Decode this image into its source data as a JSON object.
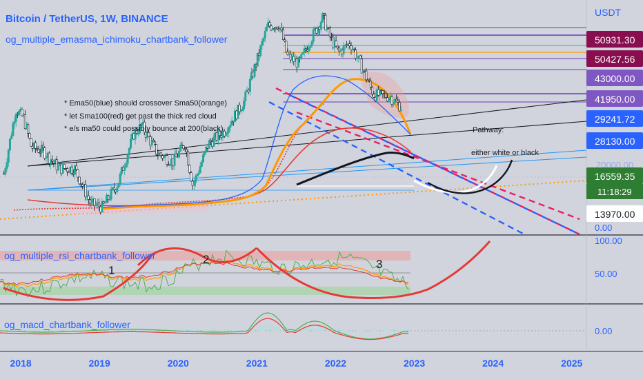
{
  "header": {
    "symbol": "Bitcoin / TetherUS, 1W, BINANCE",
    "main_indicator": "og_multiple_emasma_ichimoku_chartbank_follower"
  },
  "price_scale": {
    "currency": "USDT",
    "labels": [
      {
        "text": "50931.30",
        "color": "#880e4f",
        "value": 50931.3
      },
      {
        "text": "50427.56",
        "color": "#880e4f",
        "value": 50427.56
      },
      {
        "text": "43000.00",
        "color": "#7e57c2",
        "value": 43000.0
      },
      {
        "text": "41950.00",
        "color": "#7e57c2",
        "value": 41950.0
      },
      {
        "text": "29241.72",
        "color": "#2962ff",
        "value": 29241.72
      },
      {
        "text": "28130.00",
        "color": "#2962ff",
        "value": 28130.0
      },
      {
        "text": "16559.35",
        "color": "#2e7d32",
        "value": 16559.35
      },
      {
        "text": "13970.00",
        "color": "#ffffff",
        "value": 13970.0
      }
    ],
    "countdown": "11:18:29",
    "faint_tick": "20000.00",
    "zero_label": "0.00"
  },
  "annotations": {
    "notes": [
      "* Ema50(blue) should crossover Sma50(orange)",
      "* let Sma100(red) get past the thick red cloud",
      "* e/s ma50 could possibly bounce at 200(black)"
    ],
    "pathway": "Pathway:",
    "pathway_options": "either white or black"
  },
  "rsi_panel": {
    "title": "og_multiple_rsi_chartbank_follower",
    "scale": [
      "100.00",
      "50.00"
    ],
    "cycle_labels": [
      "1",
      "2",
      "3"
    ]
  },
  "macd_panel": {
    "title": "og_macd_chartbank_follower",
    "scale": [
      "0.00"
    ]
  },
  "time_axis": {
    "labels": [
      "2018",
      "2019",
      "2020",
      "2021",
      "2022",
      "2023",
      "2024",
      "2025"
    ]
  },
  "colors": {
    "background": "#d1d4dc",
    "bull": "#26a69a",
    "candle_dark": "#000000",
    "ema50": "#2962ff",
    "sma50": "#ff9800",
    "sma100": "#e53935",
    "ma200": "#000000",
    "axis_text": "#2962ff"
  },
  "chart_data": {
    "type": "candlestick",
    "interval": "1W",
    "x_range": [
      2017.75,
      2025.2
    ],
    "price_range": [
      0,
      70000
    ],
    "close_series": [
      {
        "t": 2017.8,
        "c": 6000
      },
      {
        "t": 2017.95,
        "c": 16000
      },
      {
        "t": 2018.05,
        "c": 14000
      },
      {
        "t": 2018.15,
        "c": 9000
      },
      {
        "t": 2018.3,
        "c": 8500
      },
      {
        "t": 2018.5,
        "c": 6500
      },
      {
        "t": 2018.7,
        "c": 6500
      },
      {
        "t": 2018.9,
        "c": 3800
      },
      {
        "t": 2019.05,
        "c": 3600
      },
      {
        "t": 2019.25,
        "c": 5200
      },
      {
        "t": 2019.45,
        "c": 11000
      },
      {
        "t": 2019.55,
        "c": 12500
      },
      {
        "t": 2019.75,
        "c": 8200
      },
      {
        "t": 2019.95,
        "c": 7200
      },
      {
        "t": 2020.1,
        "c": 9500
      },
      {
        "t": 2020.2,
        "c": 5000
      },
      {
        "t": 2020.4,
        "c": 9500
      },
      {
        "t": 2020.6,
        "c": 11500
      },
      {
        "t": 2020.85,
        "c": 18000
      },
      {
        "t": 2021.0,
        "c": 32000
      },
      {
        "t": 2021.15,
        "c": 57000
      },
      {
        "t": 2021.3,
        "c": 58000
      },
      {
        "t": 2021.4,
        "c": 36000
      },
      {
        "t": 2021.55,
        "c": 32000
      },
      {
        "t": 2021.7,
        "c": 47000
      },
      {
        "t": 2021.85,
        "c": 65000
      },
      {
        "t": 2021.95,
        "c": 47000
      },
      {
        "t": 2022.05,
        "c": 38000
      },
      {
        "t": 2022.2,
        "c": 44000
      },
      {
        "t": 2022.35,
        "c": 30000
      },
      {
        "t": 2022.5,
        "c": 20000
      },
      {
        "t": 2022.7,
        "c": 19500
      },
      {
        "t": 2022.85,
        "c": 16559
      }
    ]
  }
}
